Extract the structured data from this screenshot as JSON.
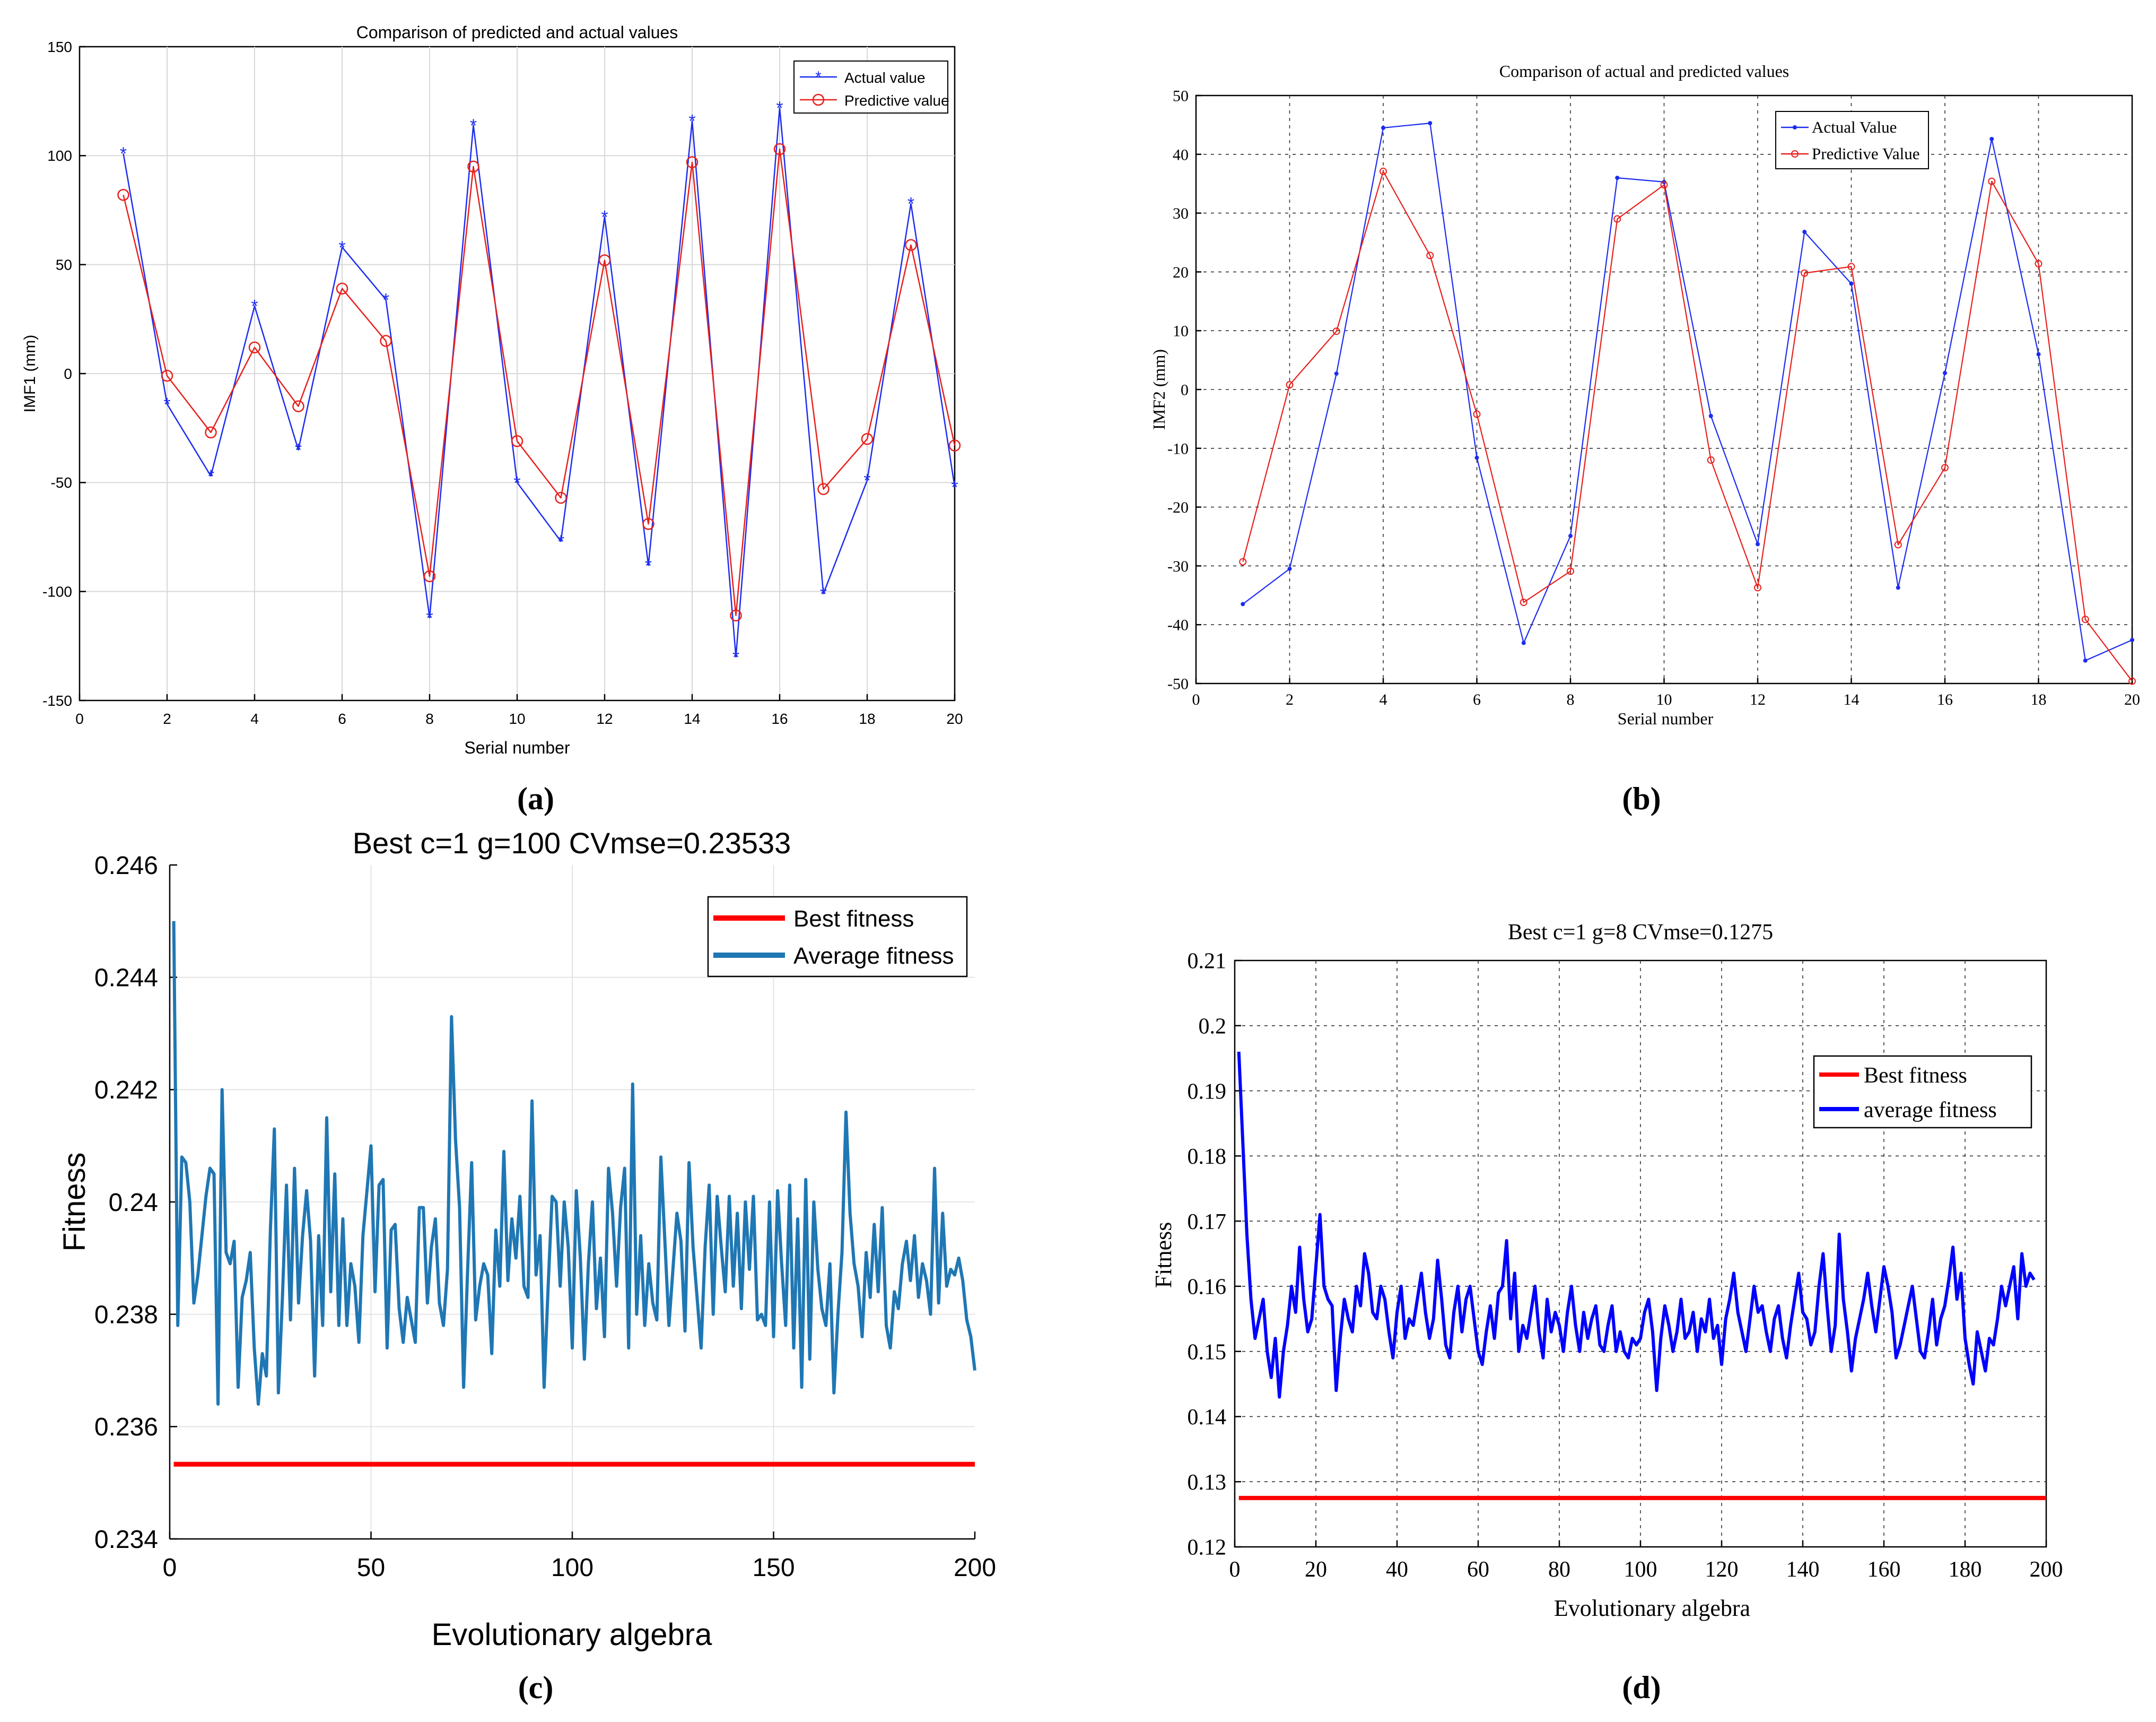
{
  "colors": {
    "blue": "#1c2cf0",
    "red": "#e8201c",
    "blue_c": "#1f77b4",
    "red_c": "#ff0000",
    "blue_d": "#0000ff",
    "red_d": "#ff0000"
  },
  "panel_labels": {
    "a": "(a)",
    "b": "(b)",
    "c": "(c)",
    "d": "(d)"
  },
  "chart_data": [
    {
      "id": "a",
      "type": "line",
      "title": "Comparison of predicted and actual values",
      "xlabel": "Serial number",
      "ylabel": "IMF1 (mm)",
      "xlim": [
        0,
        20
      ],
      "ylim": [
        -150,
        150
      ],
      "xticks": [
        0,
        2,
        4,
        6,
        8,
        10,
        12,
        14,
        16,
        18,
        20
      ],
      "yticks": [
        -150,
        -100,
        -50,
        0,
        50,
        100,
        150
      ],
      "grid": true,
      "legend_position": "top-right",
      "x": [
        1,
        2,
        3,
        4,
        5,
        6,
        7,
        8,
        9,
        10,
        11,
        12,
        13,
        14,
        15,
        16,
        17,
        18,
        19,
        20
      ],
      "series": [
        {
          "name": "Actual value",
          "marker": "star",
          "values": [
            101,
            -14,
            -47,
            31,
            -35,
            58,
            34,
            -112,
            114,
            -50,
            -77,
            72,
            -88,
            116,
            -130,
            122,
            -101,
            -49,
            78,
            -52
          ]
        },
        {
          "name": "Predictive value",
          "marker": "circle",
          "values": [
            82,
            -1,
            -27,
            12,
            -15,
            39,
            15,
            -93,
            95,
            -31,
            -57,
            52,
            -69,
            97,
            -111,
            103,
            -53,
            -30,
            59,
            -33
          ]
        }
      ]
    },
    {
      "id": "b",
      "type": "line",
      "title": "Comparison of actual and predicted values",
      "xlabel": "Serial number",
      "ylabel": "IMF2 (mm)",
      "xlim": [
        0,
        20
      ],
      "ylim": [
        -50,
        50
      ],
      "xticks": [
        0,
        2,
        4,
        6,
        8,
        10,
        12,
        14,
        16,
        18,
        20
      ],
      "yticks": [
        -50,
        -40,
        -30,
        -20,
        -10,
        0,
        10,
        20,
        30,
        40,
        50
      ],
      "grid": true,
      "legend_position": "top-right",
      "x": [
        1,
        2,
        3,
        4,
        5,
        6,
        7,
        8,
        9,
        10,
        11,
        12,
        13,
        14,
        15,
        16,
        17,
        18,
        19,
        20
      ],
      "series": [
        {
          "name": "Actual Value",
          "marker": "dot",
          "values": [
            -36.5,
            -30.5,
            2.7,
            44.5,
            45.3,
            -11.6,
            -43.1,
            -24.9,
            36.0,
            35.3,
            -4.5,
            -26.3,
            26.8,
            18.0,
            -33.7,
            2.8,
            42.6,
            6.0,
            -46.1,
            -42.6
          ]
        },
        {
          "name": "Predictive Value",
          "marker": "circle",
          "values": [
            -29.3,
            0.8,
            9.9,
            37.1,
            22.8,
            -4.2,
            -36.2,
            -30.9,
            29.0,
            34.8,
            -12.0,
            -33.7,
            19.8,
            20.9,
            -26.4,
            -13.3,
            35.4,
            21.4,
            -39.1,
            -49.6
          ]
        }
      ]
    },
    {
      "id": "c",
      "type": "line",
      "title": "Best c=1 g=100 CVmse=0.23533",
      "xlabel": "Evolutionary algebra",
      "ylabel": "Fitness",
      "xlim": [
        0,
        200
      ],
      "ylim": [
        0.234,
        0.246
      ],
      "xticks": [
        0,
        50,
        100,
        150,
        200
      ],
      "yticks": [
        0.234,
        0.236,
        0.238,
        0.24,
        0.242,
        0.244,
        0.246
      ],
      "grid": true,
      "legend_position": "top-right",
      "best_value": 0.23533,
      "series": [
        {
          "name": "Best fitness",
          "values": "constant 0.23533 over generations 1-200"
        },
        {
          "name": "Average fitness",
          "values": [
            0.245,
            0.2378,
            0.2408,
            0.2407,
            0.24,
            0.2382,
            0.2387,
            0.2394,
            0.2401,
            0.2406,
            0.2405,
            0.2364,
            0.242,
            0.2391,
            0.2389,
            0.2393,
            0.2367,
            0.2383,
            0.2386,
            0.2391,
            0.2374,
            0.2364,
            0.2373,
            0.2369,
            0.2395,
            0.2413,
            0.2366,
            0.2383,
            0.2403,
            0.2379,
            0.2406,
            0.2382,
            0.2394,
            0.2402,
            0.2393,
            0.2369,
            0.2394,
            0.2378,
            0.2415,
            0.2384,
            0.2405,
            0.2378,
            0.2397,
            0.2378,
            0.2389,
            0.2385,
            0.2375,
            0.2394,
            0.2402,
            0.241,
            0.2384,
            0.2403,
            0.2404,
            0.2374,
            0.2395,
            0.2396,
            0.2381,
            0.2375,
            0.2383,
            0.2379,
            0.2375,
            0.2399,
            0.2399,
            0.2382,
            0.2392,
            0.2397,
            0.2382,
            0.2378,
            0.2388,
            0.2433,
            0.2411,
            0.2399,
            0.2367,
            0.2388,
            0.2407,
            0.2379,
            0.2385,
            0.2389,
            0.2387,
            0.2373,
            0.2395,
            0.2385,
            0.2409,
            0.2386,
            0.2397,
            0.239,
            0.2401,
            0.2385,
            0.2383,
            0.2418,
            0.2387,
            0.2394,
            0.2367,
            0.2385,
            0.2401,
            0.24,
            0.2385,
            0.24,
            0.2392,
            0.2374,
            0.2402,
            0.239,
            0.2372,
            0.2389,
            0.24,
            0.2381,
            0.239,
            0.2376,
            0.2406,
            0.2398,
            0.2385,
            0.2399,
            0.2406,
            0.2374,
            0.2421,
            0.238,
            0.2394,
            0.2378,
            0.2389,
            0.2382,
            0.2379,
            0.2408,
            0.2393,
            0.2378,
            0.2388,
            0.2398,
            0.2393,
            0.2377,
            0.2407,
            0.2392,
            0.2383,
            0.2374,
            0.2392,
            0.2403,
            0.238,
            0.2401,
            0.2392,
            0.2384,
            0.2401,
            0.2385,
            0.2398,
            0.2381,
            0.24,
            0.2388,
            0.2401,
            0.2379,
            0.238,
            0.2378,
            0.24,
            0.2376,
            0.2402,
            0.2389,
            0.2378,
            0.2403,
            0.2374,
            0.2397,
            0.2367,
            0.2404,
            0.2372,
            0.24,
            0.2388,
            0.2381,
            0.2378,
            0.2389,
            0.2366,
            0.238,
            0.2391,
            0.2416,
            0.2398,
            0.2389,
            0.2385,
            0.2376,
            0.2391,
            0.2383,
            0.2396,
            0.2384,
            0.2399,
            0.2378,
            0.2374,
            0.2384,
            0.2381,
            0.2389,
            0.2393,
            0.2386,
            0.2394,
            0.2383,
            0.2389,
            0.2386,
            0.238,
            0.2406,
            0.2382,
            0.2398,
            0.2385,
            0.2388,
            0.2387,
            0.239,
            0.2386,
            0.2379,
            0.2376,
            0.237
          ]
        }
      ]
    },
    {
      "id": "d",
      "type": "line",
      "title": "Best c=1 g=8 CVmse=0.1275",
      "xlabel": "Evolutionary algebra",
      "ylabel": "Fitness",
      "xlim": [
        0,
        200
      ],
      "ylim": [
        0.12,
        0.21
      ],
      "xticks": [
        0,
        20,
        40,
        60,
        80,
        100,
        120,
        140,
        160,
        180,
        200
      ],
      "yticks": [
        0.12,
        0.13,
        0.14,
        0.15,
        0.16,
        0.17,
        0.18,
        0.19,
        0.2,
        0.21
      ],
      "grid": true,
      "legend_position": "top-right",
      "best_value": 0.1275,
      "series": [
        {
          "name": "Best fitness",
          "values": "constant 0.1275 over generations 1-200"
        },
        {
          "name": "average fitness",
          "values": [
            0.196,
            0.182,
            0.168,
            0.158,
            0.152,
            0.155,
            0.158,
            0.15,
            0.146,
            0.152,
            0.143,
            0.15,
            0.154,
            0.16,
            0.156,
            0.166,
            0.158,
            0.153,
            0.155,
            0.163,
            0.171,
            0.16,
            0.158,
            0.157,
            0.144,
            0.152,
            0.158,
            0.155,
            0.153,
            0.16,
            0.157,
            0.165,
            0.162,
            0.156,
            0.155,
            0.16,
            0.158,
            0.153,
            0.149,
            0.156,
            0.16,
            0.152,
            0.155,
            0.154,
            0.158,
            0.162,
            0.156,
            0.152,
            0.155,
            0.164,
            0.158,
            0.151,
            0.149,
            0.156,
            0.16,
            0.153,
            0.158,
            0.16,
            0.155,
            0.15,
            0.148,
            0.153,
            0.157,
            0.152,
            0.159,
            0.16,
            0.167,
            0.155,
            0.162,
            0.15,
            0.154,
            0.152,
            0.156,
            0.16,
            0.153,
            0.149,
            0.158,
            0.153,
            0.156,
            0.154,
            0.15,
            0.156,
            0.16,
            0.154,
            0.15,
            0.156,
            0.152,
            0.155,
            0.157,
            0.151,
            0.15,
            0.154,
            0.157,
            0.15,
            0.153,
            0.15,
            0.149,
            0.152,
            0.151,
            0.152,
            0.156,
            0.158,
            0.153,
            0.144,
            0.152,
            0.157,
            0.154,
            0.15,
            0.153,
            0.158,
            0.152,
            0.153,
            0.156,
            0.15,
            0.155,
            0.153,
            0.158,
            0.152,
            0.154,
            0.148,
            0.155,
            0.158,
            0.162,
            0.156,
            0.153,
            0.15,
            0.155,
            0.16,
            0.156,
            0.157,
            0.153,
            0.15,
            0.155,
            0.157,
            0.152,
            0.149,
            0.154,
            0.158,
            0.162,
            0.156,
            0.155,
            0.151,
            0.153,
            0.16,
            0.165,
            0.157,
            0.15,
            0.154,
            0.168,
            0.158,
            0.153,
            0.147,
            0.152,
            0.155,
            0.158,
            0.162,
            0.157,
            0.153,
            0.158,
            0.163,
            0.16,
            0.156,
            0.149,
            0.151,
            0.154,
            0.157,
            0.16,
            0.155,
            0.15,
            0.149,
            0.153,
            0.158,
            0.151,
            0.155,
            0.157,
            0.161,
            0.166,
            0.158,
            0.162,
            0.152,
            0.148,
            0.145,
            0.153,
            0.15,
            0.147,
            0.152,
            0.151,
            0.155,
            0.16,
            0.157,
            0.16,
            0.163,
            0.155,
            0.165,
            0.16,
            0.162,
            0.161
          ]
        }
      ]
    }
  ]
}
